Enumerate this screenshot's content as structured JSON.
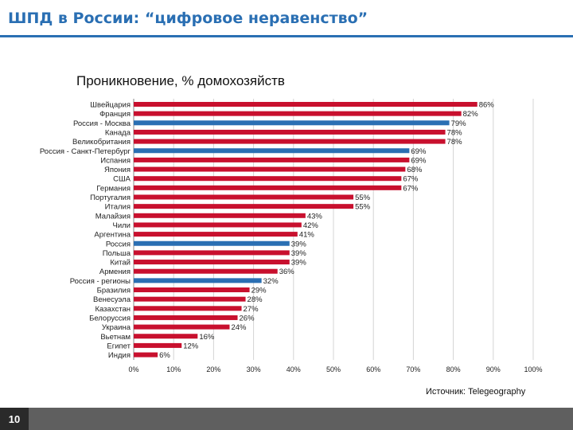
{
  "slide": {
    "title": "ШПД в России: “цифровое неравенство”",
    "page_number": "10",
    "source": "Источник: Telegeography"
  },
  "colors": {
    "accent": "#2a6fb3",
    "bar_default": "#c8102e",
    "bar_russia": "#2a6fb3",
    "footer": "#5f5f5f"
  },
  "chart_data": {
    "type": "bar",
    "orientation": "horizontal",
    "title": "Проникновение, % домохозяйств",
    "xlabel": "",
    "ylabel": "",
    "xlim": [
      0,
      100
    ],
    "x_ticks": [
      "0%",
      "10%",
      "20%",
      "30%",
      "40%",
      "50%",
      "60%",
      "70%",
      "80%",
      "90%",
      "100%"
    ],
    "grid": "vertical",
    "legend": "none",
    "categories": [
      "Швейцария",
      "Франция",
      "Россия - Москва",
      "Канада",
      "Великобритания",
      "Россия - Санкт-Петербург",
      "Испания",
      "Япония",
      "США",
      "Германия",
      "Португалия",
      "Италия",
      "Малайзия",
      "Чили",
      "Аргентина",
      "Россия",
      "Польша",
      "Китай",
      "Армения",
      "Россия - регионы",
      "Бразилия",
      "Венесуэла",
      "Казахстан",
      "Белоруссия",
      "Украина",
      "Вьетнам",
      "Египет",
      "Индия"
    ],
    "values": [
      86,
      82,
      79,
      78,
      78,
      69,
      69,
      68,
      67,
      67,
      55,
      55,
      43,
      42,
      41,
      39,
      39,
      39,
      36,
      32,
      29,
      28,
      27,
      26,
      24,
      16,
      12,
      6
    ],
    "value_labels": [
      "86%",
      "82%",
      "79%",
      "78%",
      "78%",
      "69%",
      "69%",
      "68%",
      "67%",
      "67%",
      "55%",
      "55%",
      "43%",
      "42%",
      "41%",
      "39%",
      "39%",
      "39%",
      "36%",
      "32%",
      "29%",
      "28%",
      "27%",
      "26%",
      "24%",
      "16%",
      "12%",
      "6%"
    ],
    "highlight_indices": [
      2,
      5,
      15,
      19
    ]
  }
}
